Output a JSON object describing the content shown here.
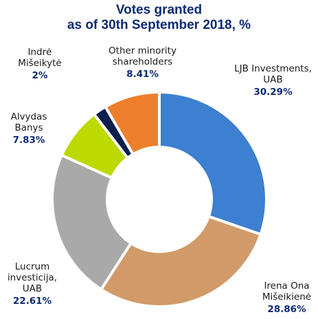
{
  "chart_data": {
    "type": "pie",
    "title_lines": [
      "Votes granted",
      "as of 30th September 2018, %"
    ],
    "slices": [
      {
        "name_lines": [
          "LJB Investments,",
          "UAB"
        ],
        "value": 30.29,
        "value_label": "30.29%",
        "color": "#3d7fd0"
      },
      {
        "name_lines": [
          "Irena Ona",
          "Mišeikienė"
        ],
        "value": 28.86,
        "value_label": "28.86%",
        "color": "#d29a68"
      },
      {
        "name_lines": [
          "Lucrum",
          "investicija,",
          "UAB"
        ],
        "value": 22.61,
        "value_label": "22.61%",
        "color": "#a9a9a9"
      },
      {
        "name_lines": [
          "Alvydas",
          "Banys"
        ],
        "value": 7.83,
        "value_label": "7.83%",
        "color": "#bcd900"
      },
      {
        "name_lines": [
          "Indrė",
          "Mišeikytė"
        ],
        "value": 2,
        "value_label": "2%",
        "color": "#0c1f4d"
      },
      {
        "name_lines": [
          "Other minority",
          "shareholders"
        ],
        "value": 8.41,
        "value_label": "8.41%",
        "color": "#ed7f2c"
      }
    ]
  }
}
